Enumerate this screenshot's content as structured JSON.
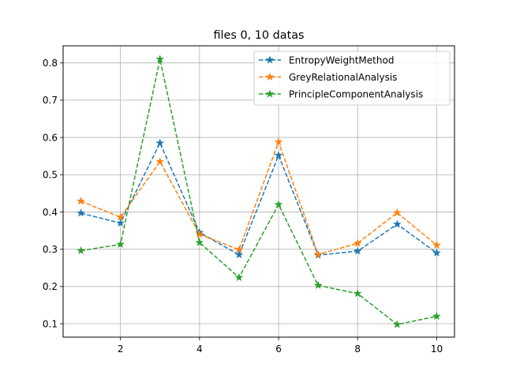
{
  "chart_data": {
    "type": "line",
    "title": "files 0, 10 datas",
    "xlabel": "",
    "ylabel": "",
    "x": [
      1,
      2,
      3,
      4,
      5,
      6,
      7,
      8,
      9,
      10
    ],
    "xlim": [
      0.55,
      10.45
    ],
    "ylim": [
      0.064,
      0.846
    ],
    "xticks": [
      2,
      4,
      6,
      8,
      10
    ],
    "yticks": [
      0.1,
      0.2,
      0.3,
      0.4,
      0.5,
      0.6,
      0.7,
      0.8
    ],
    "xtick_labels": [
      "2",
      "4",
      "6",
      "8",
      "10"
    ],
    "ytick_labels": [
      "0.1",
      "0.2",
      "0.3",
      "0.4",
      "0.5",
      "0.6",
      "0.7",
      "0.8"
    ],
    "grid": true,
    "legend_position": "top-right",
    "line_style": "dashed",
    "marker": "star",
    "series": [
      {
        "name": "EntropyWeightMethod",
        "color": "#1f77b4",
        "values": [
          0.397,
          0.37,
          0.585,
          0.345,
          0.285,
          0.552,
          0.284,
          0.295,
          0.367,
          0.29
        ]
      },
      {
        "name": "GreyRelationalAnalysis",
        "color": "#ff7f0e",
        "values": [
          0.429,
          0.386,
          0.535,
          0.34,
          0.299,
          0.588,
          0.286,
          0.316,
          0.398,
          0.311
        ]
      },
      {
        "name": "PrincipleComponentAnalysis",
        "color": "#2ca02c",
        "values": [
          0.296,
          0.313,
          0.81,
          0.318,
          0.224,
          0.42,
          0.203,
          0.181,
          0.098,
          0.12
        ]
      }
    ]
  }
}
